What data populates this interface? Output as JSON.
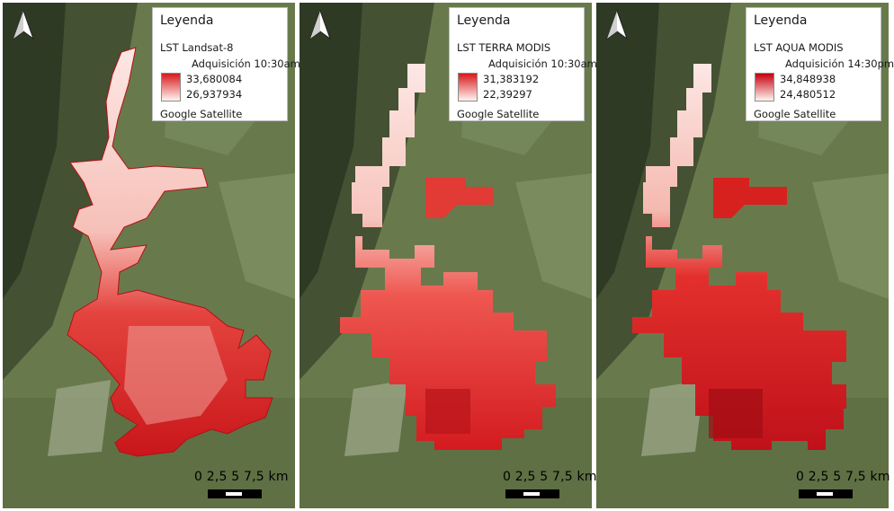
{
  "legend_heading": "Leyenda",
  "basemap_label": "Google Satellite",
  "scale_text": "0 2,5 5 7,5 km",
  "panels": [
    {
      "layer": "LST Landsat-8",
      "acquisition": "Adquisición 10:30am",
      "max": "33,680084",
      "min": "26,937934",
      "ramp_high": "#d7191c",
      "ramp_low": "#fff5f0"
    },
    {
      "layer": "LST TERRA MODIS",
      "acquisition": "Adquisición 10:30am",
      "max": "31,383192",
      "min": "22,39297",
      "ramp_high": "#d7191c",
      "ramp_low": "#fff5f0"
    },
    {
      "layer": "LST AQUA MODIS",
      "acquisition": "Adquisición 14:30pm",
      "max": "34,848938",
      "min": "24,480512",
      "ramp_high": "#c5000f",
      "ramp_low": "#fff5f0"
    }
  ],
  "colors": {
    "mountain": "#3e4a2f",
    "farmland": "#6b7a4e",
    "urban_hot": "#d7191c",
    "urban_cool": "#fde0dd"
  },
  "icons": {
    "north": "north-arrow-icon"
  }
}
